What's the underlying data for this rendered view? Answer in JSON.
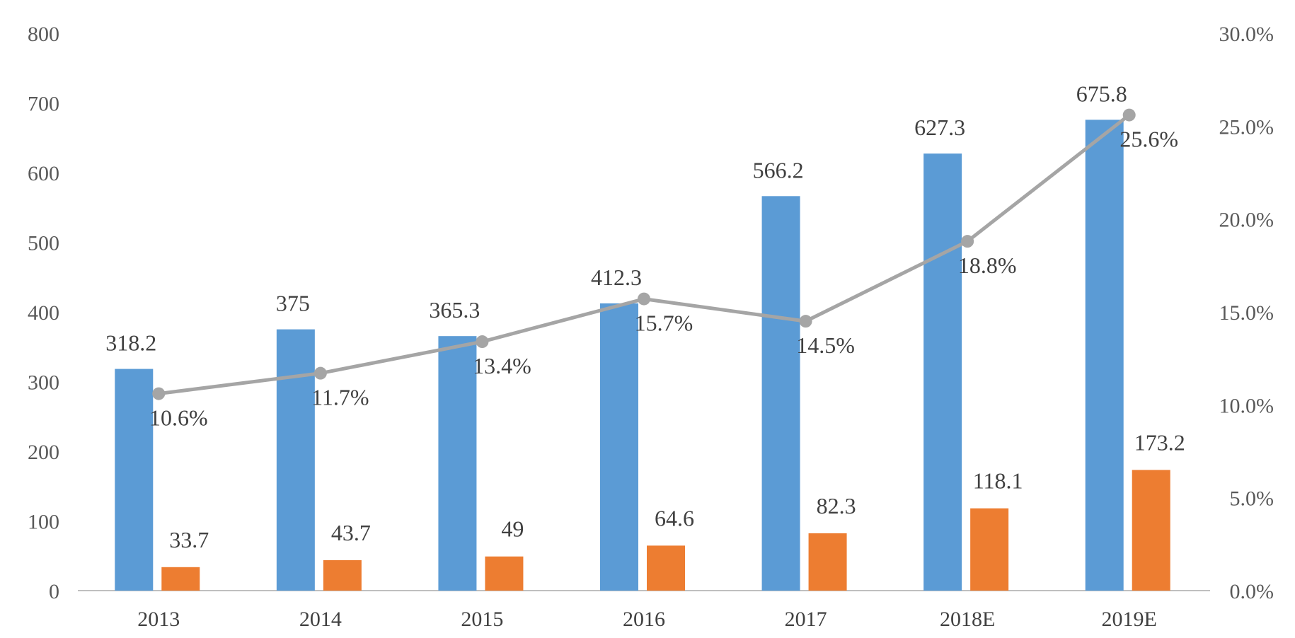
{
  "chart_data": {
    "type": "bar",
    "categories": [
      "2013",
      "2014",
      "2015",
      "2016",
      "2017",
      "2018E",
      "2019E"
    ],
    "series": [
      {
        "name": "series-1",
        "type": "bar",
        "axis": "left",
        "color": "#5B9BD5",
        "values": [
          318.2,
          375,
          365.3,
          412.3,
          566.2,
          627.3,
          675.8
        ],
        "labels": [
          "318.2",
          "375",
          "365.3",
          "412.3",
          "566.2",
          "627.3",
          "675.8"
        ]
      },
      {
        "name": "series-2",
        "type": "bar",
        "axis": "left",
        "color": "#ED7D31",
        "values": [
          33.7,
          43.7,
          49,
          64.6,
          82.3,
          118.1,
          173.2
        ],
        "labels": [
          "33.7",
          "43.7",
          "49",
          "64.6",
          "82.3",
          "118.1",
          "173.2"
        ]
      },
      {
        "name": "series-3",
        "type": "line",
        "axis": "right",
        "color": "#A5A5A5",
        "values": [
          10.6,
          11.7,
          13.4,
          15.7,
          14.5,
          18.8,
          25.6
        ],
        "labels": [
          "10.6%",
          "11.7%",
          "13.4%",
          "15.7%",
          "14.5%",
          "18.8%",
          "25.6%"
        ]
      }
    ],
    "left_axis": {
      "ylim": [
        0,
        800
      ],
      "ticks": [
        0,
        100,
        200,
        300,
        400,
        500,
        600,
        700,
        800
      ],
      "tick_labels": [
        "0",
        "100",
        "200",
        "300",
        "400",
        "500",
        "600",
        "700",
        "800"
      ]
    },
    "right_axis": {
      "ylim": [
        0,
        30
      ],
      "ticks": [
        0,
        5,
        10,
        15,
        20,
        25,
        30
      ],
      "tick_labels": [
        "0.0%",
        "5.0%",
        "10.0%",
        "15.0%",
        "20.0%",
        "25.0%",
        "30.0%"
      ]
    },
    "title": "",
    "xlabel": "",
    "ylabel": "",
    "grid": false,
    "legend": "none"
  }
}
